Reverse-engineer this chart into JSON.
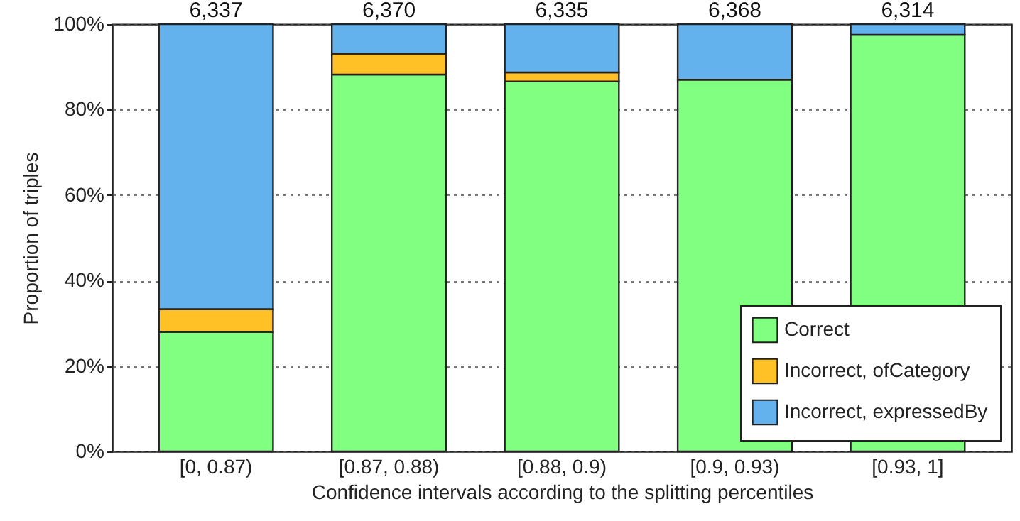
{
  "chart_data": {
    "type": "bar",
    "stacked": true,
    "xlabel": "Confidence intervals according to the splitting percentiles",
    "ylabel": "Proportion of triples",
    "categories": [
      "[0, 0.87)",
      "[0.87, 0.88)",
      "[0.88, 0.9)",
      "[0.9, 0.93)",
      "[0.93, 1]"
    ],
    "series": [
      {
        "name": "Correct",
        "color": "#80ff80",
        "values": [
          28,
          88.2,
          86.6,
          87.0,
          97.5
        ]
      },
      {
        "name": "Incorrect, ofCategory",
        "color": "#ffc125",
        "values": [
          5.3,
          4.9,
          2.1,
          null,
          null
        ]
      },
      {
        "name": "Incorrect, expressedBy",
        "color": "#63b1ed",
        "values": [
          66.7,
          6.9,
          11.3,
          13.0,
          2.5
        ]
      }
    ],
    "annotations": [
      {
        "text": "6,337",
        "x": "[0, 0.87)",
        "y": 100
      },
      {
        "text": "6,370",
        "x": "[0.87, 0.88)",
        "y": 100
      },
      {
        "text": "6,335",
        "x": "[0.88, 0.9)",
        "y": 100
      },
      {
        "text": "6,368",
        "x": "[0.9, 0.93)",
        "y": 100
      },
      {
        "text": "6,314",
        "x": "[0.93, 1]",
        "y": 100
      }
    ],
    "ylim": [
      0,
      100
    ],
    "yticks": [
      {
        "value": 0,
        "label": "0%"
      },
      {
        "value": 20,
        "label": "20%"
      },
      {
        "value": 40,
        "label": "40%"
      },
      {
        "value": 60,
        "label": "60%"
      },
      {
        "value": 80,
        "label": "80%"
      },
      {
        "value": 100,
        "label": "100%"
      }
    ],
    "grid": "y",
    "legend": "bottom right"
  }
}
